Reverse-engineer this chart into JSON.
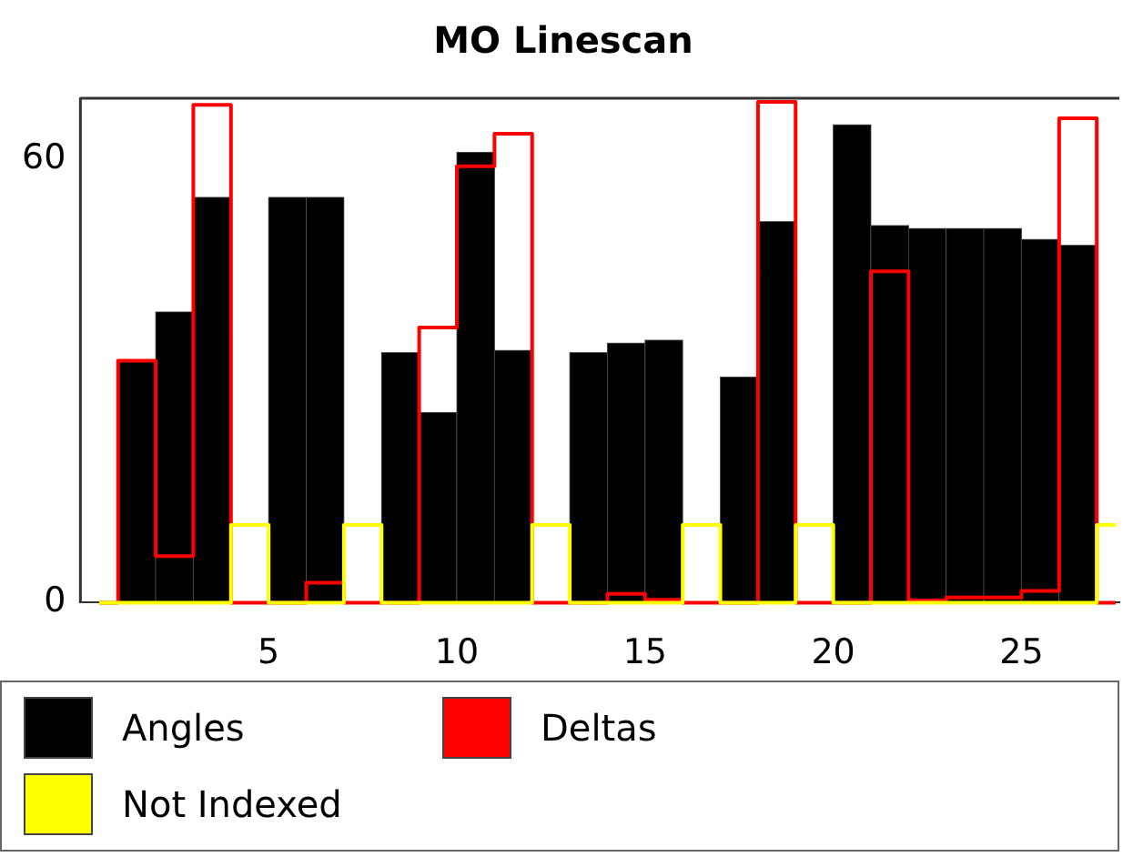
{
  "chart_data": {
    "type": "histogram",
    "title": "MO Linescan",
    "bins": [
      0,
      1,
      2,
      3,
      4,
      5,
      6,
      7,
      8,
      9,
      10,
      11,
      12,
      13,
      14,
      15,
      16,
      17,
      18,
      19,
      20,
      21,
      22,
      23,
      24,
      25,
      26,
      27,
      28
    ],
    "series": [
      {
        "name": "Angles",
        "color": "#000000",
        "values": [
          null,
          32.7,
          39.3,
          54.8,
          null,
          54.8,
          54.8,
          null,
          33.8,
          25.7,
          60.9,
          34.1,
          null,
          33.8,
          35.1,
          35.5,
          null,
          30.5,
          51.5,
          null,
          64.6,
          51.0,
          50.6,
          50.6,
          50.6,
          49.1,
          48.3,
          null
        ]
      },
      {
        "name": "Deltas",
        "type": "step",
        "color": "#ff0000",
        "x": [
          0.5,
          1.5,
          2.5,
          3.5,
          4.5,
          5.5,
          6.5,
          7.5,
          8.5,
          9.5,
          10.5,
          11.5,
          12.5,
          13.5,
          14.5,
          15.5,
          16.5,
          17.5,
          18.5,
          19.5,
          20.5,
          21.5,
          22.5,
          23.5,
          24.5,
          25.5,
          26.5,
          27.5
        ],
        "values": [
          0,
          32.7,
          6.3,
          67.3,
          0,
          0,
          2.7,
          0,
          0,
          37.2,
          59.0,
          63.4,
          0,
          0,
          1.2,
          0.4,
          0,
          0,
          67.7,
          0,
          0,
          44.8,
          0.3,
          0.7,
          0.7,
          1.6,
          65.5,
          0
        ]
      },
      {
        "name": "Not Indexed",
        "type": "step",
        "color": "#ffff00",
        "x": [
          0.5,
          1.5,
          2.5,
          3.5,
          4.5,
          5.5,
          6.5,
          7.5,
          8.5,
          9.5,
          10.5,
          11.5,
          12.5,
          13.5,
          14.5,
          15.5,
          16.5,
          17.5,
          18.5,
          19.5,
          20.5,
          21.5,
          22.5,
          23.5,
          24.5,
          25.5,
          26.5,
          27.5
        ],
        "values": [
          0,
          0,
          0,
          0,
          10.5,
          0,
          0,
          10.5,
          0,
          0,
          0,
          0,
          10.5,
          0,
          0,
          0,
          10.5,
          0,
          0,
          10.5,
          0,
          0,
          0,
          0,
          0,
          0,
          0,
          10.5
        ]
      }
    ],
    "xlim": [
      0,
      27.6
    ],
    "xticks": [
      5,
      10,
      15,
      20,
      25
    ],
    "ylim": [
      0,
      68.2
    ],
    "yticks": [
      0,
      60
    ],
    "grid": false,
    "legend": "bottom"
  }
}
